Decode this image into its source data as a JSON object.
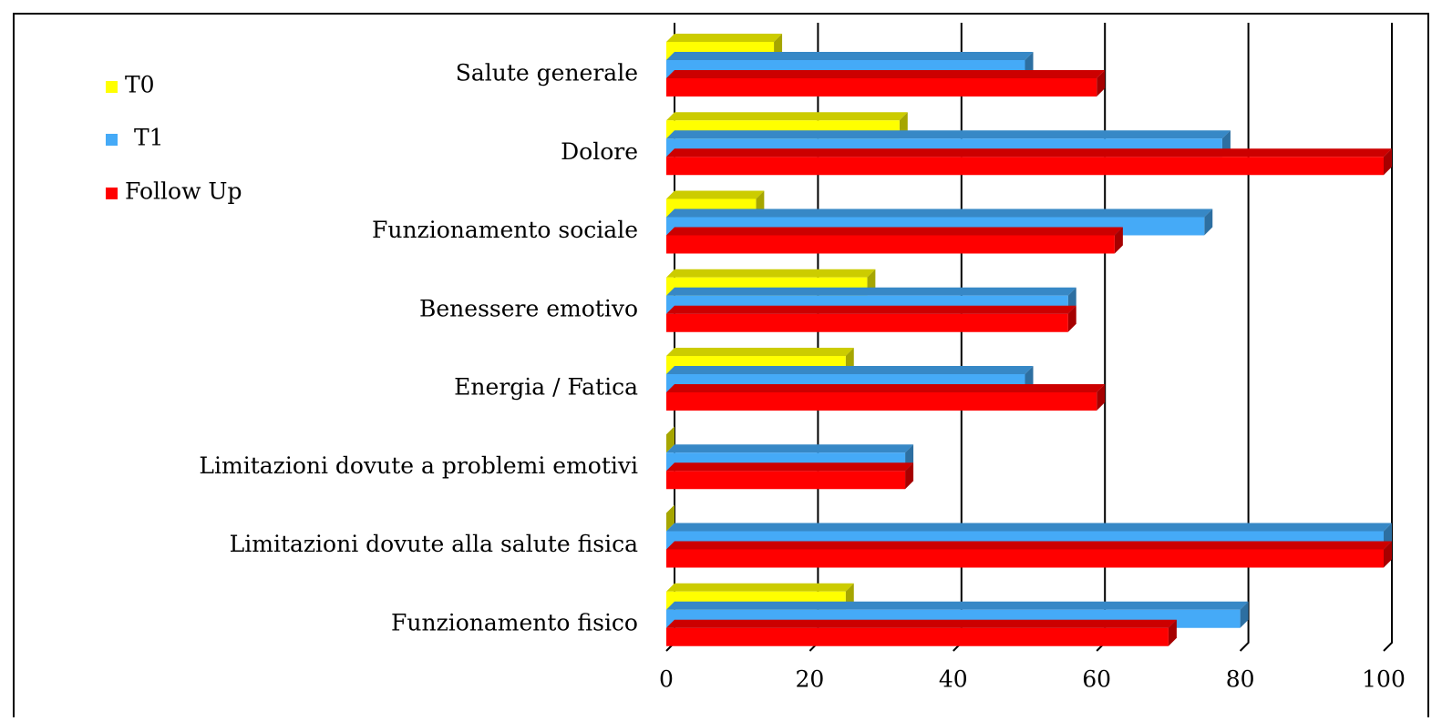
{
  "chart_data": {
    "type": "bar",
    "orientation": "horizontal",
    "categories": [
      "Salute generale",
      "Dolore",
      "Funzionamento sociale",
      "Benessere emotivo",
      "Energia / Fatica",
      "Limitazioni dovute a problemi emotivi",
      "Limitazioni dovute alla salute fisica",
      "Funzionamento fisico"
    ],
    "series": [
      {
        "name": "T0",
        "color": "#ffff00",
        "values": [
          15,
          32.5,
          12.5,
          28,
          25,
          0,
          0,
          25
        ]
      },
      {
        "name": "T1",
        "color": "#45aaf7",
        "values": [
          50,
          77.5,
          75,
          56,
          50,
          33.3,
          100,
          80
        ]
      },
      {
        "name": "Follow Up",
        "color": "#ff0000",
        "values": [
          60,
          100,
          62.5,
          56,
          60,
          33.3,
          100,
          70
        ]
      }
    ],
    "xlim": [
      0,
      100
    ],
    "xticks": [
      0,
      20,
      40,
      60,
      80,
      100
    ],
    "grid": true,
    "legend": "upper left"
  }
}
